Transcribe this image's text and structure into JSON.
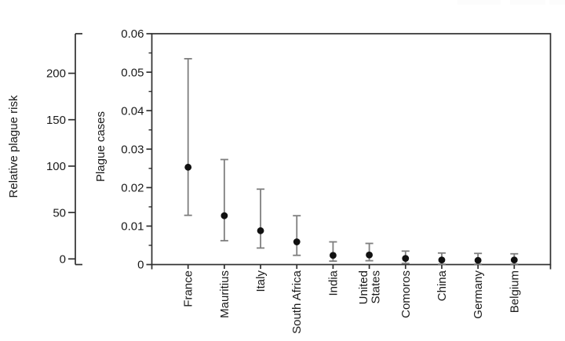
{
  "chart_data": {
    "type": "scatter",
    "title": "",
    "ylabel": "Plague cases",
    "ylim": [
      0,
      0.06
    ],
    "y_ticks": [
      {
        "value": 0,
        "label": "0"
      },
      {
        "value": 0.01,
        "label": "0.01"
      },
      {
        "value": 0.02,
        "label": "0.02"
      },
      {
        "value": 0.03,
        "label": "0.03"
      },
      {
        "value": 0.04,
        "label": "0.04"
      },
      {
        "value": 0.05,
        "label": "0.05"
      },
      {
        "value": 0.06,
        "label": "0.06"
      }
    ],
    "y_minor_tick_step": 0.005,
    "categories": [
      "France",
      "Mauritius",
      "Italy",
      "South Africa",
      "India",
      "United\nStates",
      "Comoros",
      "China",
      "Germany",
      "Belgium"
    ],
    "values": [
      0.0253,
      0.0127,
      0.0088,
      0.0059,
      0.0024,
      0.0025,
      0.0016,
      0.0012,
      0.0011,
      0.0012
    ],
    "ci_low": [
      0.0128,
      0.0062,
      0.0043,
      0.0024,
      0.0009,
      0.001,
      0.0003,
      0.0001,
      0.0001,
      0.0001
    ],
    "ci_high": [
      0.0535,
      0.0273,
      0.0196,
      0.0127,
      0.0059,
      0.0055,
      0.0035,
      0.003,
      0.0029,
      0.0028
    ],
    "error_bars": true,
    "grid": false,
    "legend": "none",
    "secondary_axis": {
      "label": "Relative plague risk",
      "ticks": [
        {
          "value": 0,
          "label": "0"
        },
        {
          "value": 50,
          "label": "50"
        },
        {
          "value": 100,
          "label": "100"
        },
        {
          "value": 150,
          "label": "150"
        },
        {
          "value": 200,
          "label": "200"
        }
      ],
      "range": [
        0,
        242
      ]
    },
    "colors": {
      "point": "#111111",
      "error_bar": "#7f7f7f",
      "axis": "#2f2f2f",
      "text": "#1a1a1a",
      "background": "#ffffff",
      "artifact": "#fcfcfc"
    }
  }
}
